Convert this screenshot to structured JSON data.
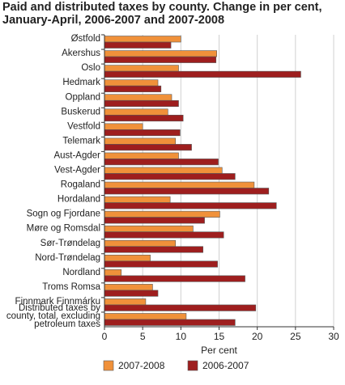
{
  "chart_data": {
    "type": "bar",
    "orientation": "horizontal",
    "title_line1": "Paid and distributed taxes by county. Change in per cent,",
    "title_line2": "January-April, 2006-2007 and 2007-2008",
    "xlabel": "Per cent",
    "xlim": [
      0,
      30
    ],
    "xticks": [
      0,
      5,
      10,
      15,
      20,
      25,
      30
    ],
    "grid": true,
    "legend_position": "bottom",
    "categories": [
      [
        "Østfold"
      ],
      [
        "Akershus"
      ],
      [
        "Oslo"
      ],
      [
        "Hedmark"
      ],
      [
        "Oppland"
      ],
      [
        "Buskerud"
      ],
      [
        "Vestfold"
      ],
      [
        "Telemark"
      ],
      [
        "Aust-Agder"
      ],
      [
        "Vest-Agder"
      ],
      [
        "Rogaland"
      ],
      [
        "Hordaland"
      ],
      [
        "Sogn og Fjordane"
      ],
      [
        "Møre og Romsdal"
      ],
      [
        "Sør-Trøndelag"
      ],
      [
        "Nord-Trøndelag"
      ],
      [
        "Nordland"
      ],
      [
        "Troms Romsa"
      ],
      [
        "Finnmark Finnmárku"
      ],
      [
        "Distributed taxes by",
        "county, total, excluding",
        "petroleum taxes"
      ]
    ],
    "series": [
      {
        "name": "2007-2008",
        "color": "#f0913a",
        "values": [
          10.0,
          14.7,
          9.7,
          7.0,
          8.8,
          8.3,
          5.0,
          9.3,
          9.7,
          15.4,
          19.6,
          8.6,
          15.1,
          11.6,
          9.3,
          6.0,
          2.2,
          6.3,
          5.4,
          10.7
        ]
      },
      {
        "name": "2006-2007",
        "color": "#9e1e1e",
        "values": [
          8.7,
          14.6,
          25.7,
          7.4,
          9.7,
          10.3,
          9.9,
          11.4,
          14.9,
          17.1,
          21.5,
          22.5,
          13.1,
          15.6,
          12.9,
          14.8,
          18.4,
          7.0,
          19.8,
          17.1
        ]
      }
    ]
  }
}
